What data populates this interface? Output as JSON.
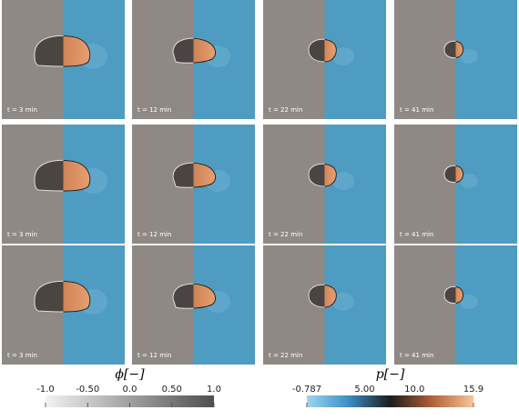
{
  "panels": [
    {
      "times": [
        "t = 3 min",
        "t = 12 min",
        "t = 22 min",
        "t = 41 min"
      ]
    },
    {
      "times": [
        "t = 3 min",
        "t = 12 min",
        "t = 22 min",
        "t = 41 min"
      ]
    },
    {
      "times": [
        "t = 3 min",
        "t = 12 min",
        "t = 22 min",
        "t = 41 min"
      ]
    }
  ],
  "colorbars": [
    {
      "label": "ϕ[−]",
      "lim": [
        -1,
        1
      ],
      "ticks": [
        {
          "value": -1,
          "label": "-1.0"
        },
        {
          "value": -0.5,
          "label": "-0.50"
        },
        {
          "value": 0,
          "label": "0.0"
        },
        {
          "value": 0.5,
          "label": "0.50"
        },
        {
          "value": 1,
          "label": "1.0"
        }
      ]
    },
    {
      "label": "p[−]",
      "lim": [
        -0.787,
        15.9
      ],
      "ticks": [
        {
          "value": -0.787,
          "label": "-0.787"
        },
        {
          "value": 5,
          "label": "5.00"
        },
        {
          "value": 10,
          "label": "10.0"
        },
        {
          "value": 15.9,
          "label": "15.9"
        }
      ]
    }
  ]
}
